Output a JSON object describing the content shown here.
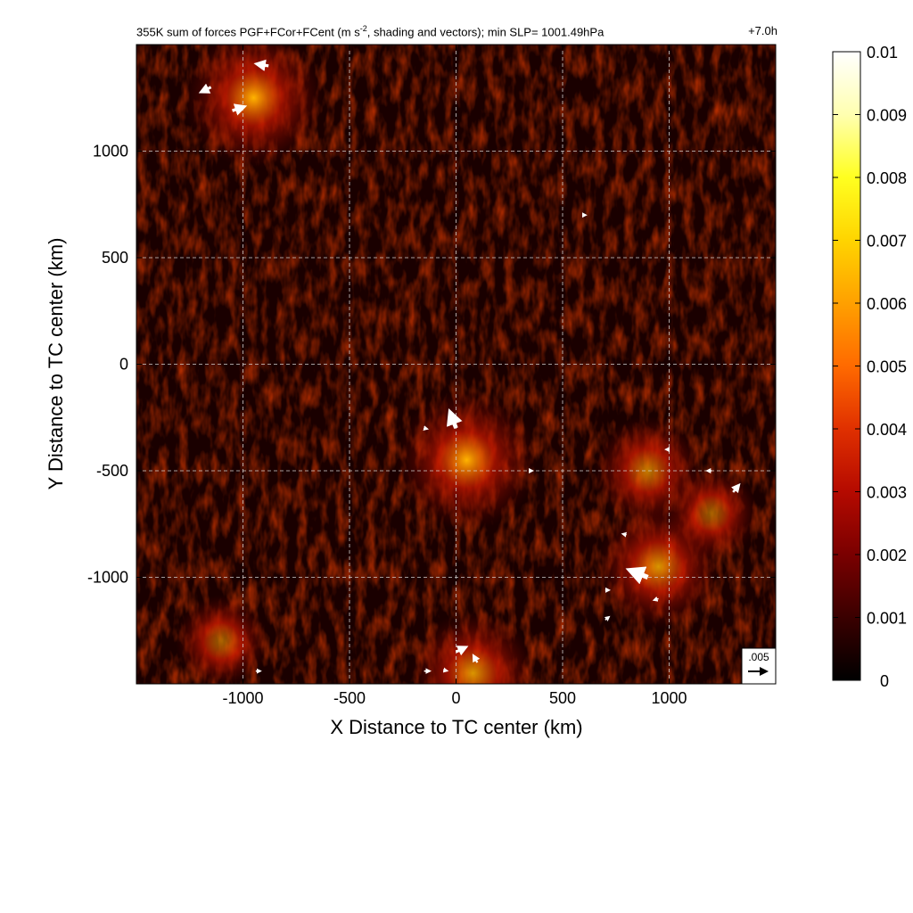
{
  "chart_data": {
    "type": "heatmap",
    "title_prefix": "355K sum of forces PGF+FCor+FCent (m s",
    "title_sup": "-2",
    "title_suffix": ", shading and vectors); min SLP= 1001.49hPa",
    "time_label": "+7.0h",
    "xlabel": "X Distance to TC center (km)",
    "ylabel": "Y Distance to TC center (km)",
    "xlim": [
      -1500,
      1500
    ],
    "ylim": [
      -1500,
      1500
    ],
    "xticks": [
      -1000,
      -500,
      0,
      500,
      1000
    ],
    "yticks": [
      1000,
      500,
      0,
      -500,
      -1000
    ],
    "grid": true,
    "colorbar": {
      "min": 0,
      "max": 0.01,
      "ticks": [
        "0.01",
        "0.009",
        "0.008",
        "0.007",
        "0.006",
        "0.005",
        "0.004",
        "0.003",
        "0.002",
        "0.001",
        "0"
      ],
      "colors": [
        "#000000",
        "#3a0000",
        "#7a0000",
        "#b50a00",
        "#e03000",
        "#ff6a00",
        "#ffa000",
        "#ffd400",
        "#ffff20",
        "#ffffb0",
        "#ffffff"
      ]
    },
    "reference_vector": {
      "label": ".005",
      "magnitude": 0.005
    },
    "hotspots": [
      {
        "x": 50,
        "y": -450,
        "value": 0.006
      },
      {
        "x": 950,
        "y": -950,
        "value": 0.005
      },
      {
        "x": 900,
        "y": -500,
        "value": 0.004
      },
      {
        "x": 80,
        "y": -1450,
        "value": 0.005
      },
      {
        "x": -950,
        "y": 1250,
        "value": 0.006
      },
      {
        "x": -1100,
        "y": -1300,
        "value": 0.003
      },
      {
        "x": 1200,
        "y": -700,
        "value": 0.003
      }
    ],
    "vectors": [
      {
        "x": 0,
        "y": -300,
        "u": -0.0015,
        "v": 0.004
      },
      {
        "x": 900,
        "y": -1000,
        "u": -0.0045,
        "v": 0.0018
      },
      {
        "x": 1300,
        "y": -600,
        "u": 0.0015,
        "v": 0.0018
      },
      {
        "x": -880,
        "y": 1400,
        "u": -0.003,
        "v": 0.0005
      },
      {
        "x": -1150,
        "y": 1300,
        "u": -0.0025,
        "v": -0.0012
      },
      {
        "x": -1050,
        "y": 1190,
        "u": 0.003,
        "v": 0.001
      },
      {
        "x": 0,
        "y": -1350,
        "u": 0.0025,
        "v": 0.0012
      },
      {
        "x": 100,
        "y": -1400,
        "u": -0.001,
        "v": 0.0018
      },
      {
        "x": 700,
        "y": -1200,
        "u": 0.001,
        "v": 0.0008
      },
      {
        "x": 1200,
        "y": -500,
        "u": -0.0012,
        "v": 0.0
      },
      {
        "x": -150,
        "y": -1440,
        "u": 0.0015,
        "v": 0.0
      },
      {
        "x": -60,
        "y": -1435,
        "u": 0.001,
        "v": -0.0002
      },
      {
        "x": -940,
        "y": -1440,
        "u": 0.0012,
        "v": 0.0
      },
      {
        "x": -150,
        "y": -300,
        "u": 0.0008,
        "v": -0.0002
      },
      {
        "x": 800,
        "y": -800,
        "u": -0.001,
        "v": 0.0002
      },
      {
        "x": 1000,
        "y": -400,
        "u": -0.0008,
        "v": 0.0
      },
      {
        "x": 950,
        "y": -1100,
        "u": -0.0012,
        "v": -0.0004
      },
      {
        "x": 700,
        "y": -1060,
        "u": 0.001,
        "v": 0.0
      },
      {
        "x": 350,
        "y": -500,
        "u": 0.0004,
        "v": 0.0
      },
      {
        "x": 600,
        "y": 700,
        "u": 0.0004,
        "v": 0.0
      }
    ]
  }
}
